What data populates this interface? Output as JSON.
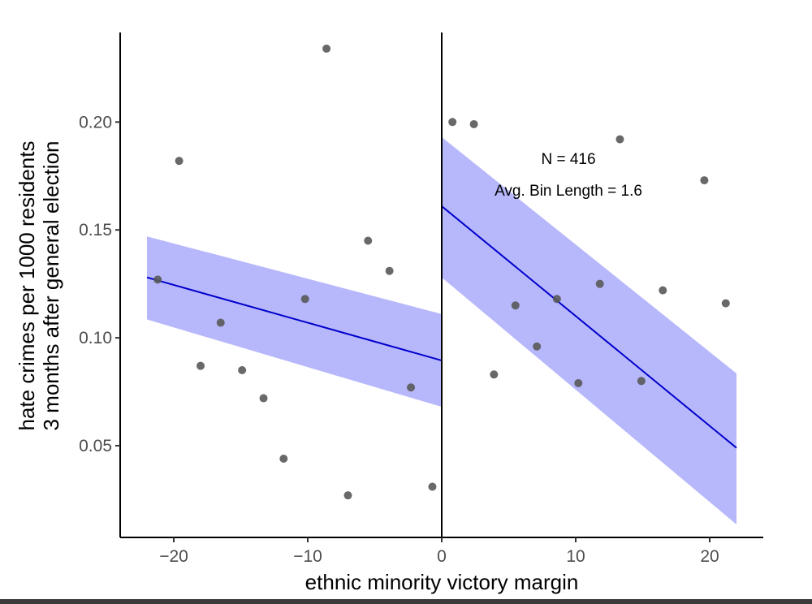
{
  "chart_data": {
    "type": "scatter",
    "title": "",
    "xlabel": "ethnic minority victory margin",
    "ylabel_lines": [
      "hate crimes per 1000 residents",
      "3 months after general election"
    ],
    "xlim": [
      -24,
      24
    ],
    "ylim": [
      0.0075,
      0.2415
    ],
    "x_ticks": [
      -20,
      -10,
      0,
      10,
      20
    ],
    "x_tick_labels": [
      "−20",
      "−10",
      "0",
      "10",
      "20"
    ],
    "y_ticks": [
      0.05,
      0.1,
      0.15,
      0.2
    ],
    "y_tick_labels": [
      "0.05",
      "0.10",
      "0.15",
      "0.20"
    ],
    "cutoff": 0,
    "annotations": [
      "N = 416",
      "Avg. Bin Length = 1.6"
    ],
    "points": [
      {
        "x": -21.2,
        "y": 0.127
      },
      {
        "x": -19.6,
        "y": 0.182
      },
      {
        "x": -18.0,
        "y": 0.087
      },
      {
        "x": -16.5,
        "y": 0.107
      },
      {
        "x": -14.9,
        "y": 0.085
      },
      {
        "x": -13.3,
        "y": 0.072
      },
      {
        "x": -11.8,
        "y": 0.044
      },
      {
        "x": -10.2,
        "y": 0.118
      },
      {
        "x": -8.6,
        "y": 0.234
      },
      {
        "x": -7.0,
        "y": 0.027
      },
      {
        "x": -5.5,
        "y": 0.145
      },
      {
        "x": -3.9,
        "y": 0.131
      },
      {
        "x": -2.3,
        "y": 0.077
      },
      {
        "x": -0.7,
        "y": 0.031
      },
      {
        "x": 0.8,
        "y": 0.2
      },
      {
        "x": 2.4,
        "y": 0.199
      },
      {
        "x": 3.9,
        "y": 0.083
      },
      {
        "x": 5.5,
        "y": 0.115
      },
      {
        "x": 7.1,
        "y": 0.096
      },
      {
        "x": 8.6,
        "y": 0.118
      },
      {
        "x": 10.2,
        "y": 0.079
      },
      {
        "x": 11.8,
        "y": 0.125
      },
      {
        "x": 13.3,
        "y": 0.192
      },
      {
        "x": 14.9,
        "y": 0.08
      },
      {
        "x": 16.5,
        "y": 0.122
      },
      {
        "x": 19.6,
        "y": 0.173
      },
      {
        "x": 21.2,
        "y": 0.116
      }
    ],
    "fits": [
      {
        "name": "left",
        "x": [
          -22,
          0
        ],
        "y": [
          0.128,
          0.0895
        ],
        "lower": [
          0.1085,
          0.068
        ],
        "upper": [
          0.147,
          0.111
        ]
      },
      {
        "name": "right",
        "x": [
          0,
          22
        ],
        "y": [
          0.161,
          0.049
        ],
        "lower": [
          0.128,
          0.0135
        ],
        "upper": [
          0.193,
          0.0835
        ]
      }
    ],
    "colors": {
      "point": "#595959",
      "line": "#0000cc",
      "band": "#b3b3fb",
      "axis": "#000000"
    }
  }
}
